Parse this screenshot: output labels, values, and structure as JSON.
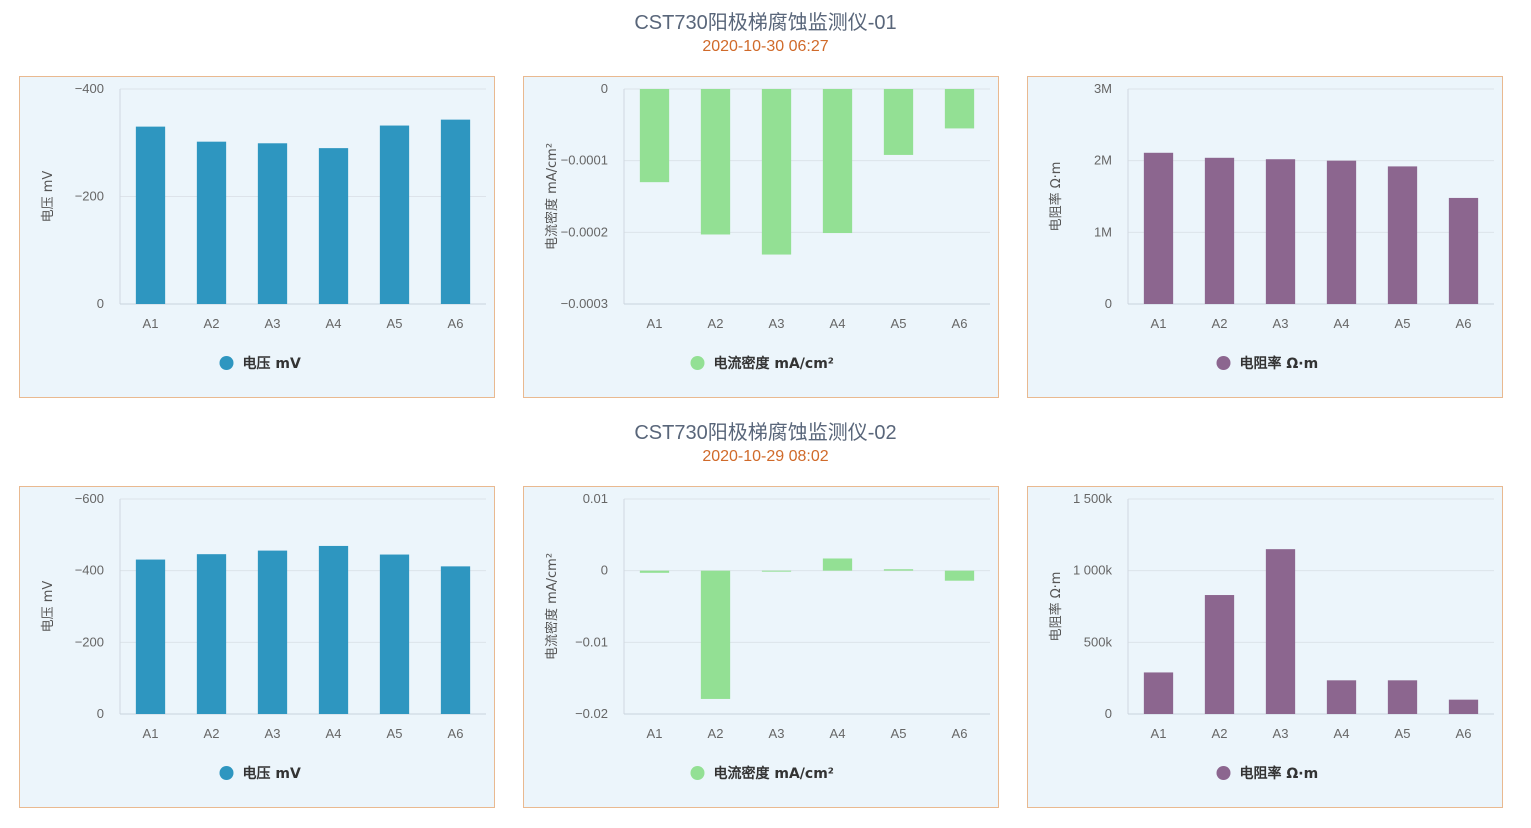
{
  "devices": [
    {
      "title": "CST730阳极梯腐蚀监测仪-01",
      "timestamp": "2020-10-30 06:27"
    },
    {
      "title": "CST730阳极梯腐蚀监测仪-02",
      "timestamp": "2020-10-29 08:02"
    }
  ],
  "chart_data": [
    {
      "type": "bar",
      "device": "CST730阳极梯腐蚀监测仪-01",
      "categories": [
        "A1",
        "A2",
        "A3",
        "A4",
        "A5",
        "A6"
      ],
      "series": [
        {
          "name": "电压 mV",
          "values": [
            -330,
            -302,
            -299,
            -290,
            -332,
            -343
          ]
        }
      ],
      "ylabel": "电压 mV",
      "ylim": [
        0,
        -400
      ],
      "yticks": [
        0,
        -200,
        -400
      ],
      "ytick_labels": [
        "0",
        "−200",
        "−400"
      ],
      "reversed": true,
      "color": "#2e96c0",
      "grid": true,
      "legend": "bottom-center"
    },
    {
      "type": "bar",
      "device": "CST730阳极梯腐蚀监测仪-01",
      "categories": [
        "A1",
        "A2",
        "A3",
        "A4",
        "A5",
        "A6"
      ],
      "series": [
        {
          "name": "电流密度 mA/cm²",
          "values": [
            -0.00013,
            -0.000203,
            -0.000231,
            -0.000201,
            -9.2e-05,
            -5.5e-05
          ]
        }
      ],
      "ylabel": "电流密度 mA/cm²",
      "ylim": [
        -0.0003,
        0
      ],
      "yticks": [
        0,
        -0.0001,
        -0.0002,
        -0.0003
      ],
      "ytick_labels": [
        "0",
        "−0.0001",
        "−0.0002",
        "−0.0003"
      ],
      "color": "#93e094",
      "grid": true,
      "legend": "bottom-center"
    },
    {
      "type": "bar",
      "device": "CST730阳极梯腐蚀监测仪-01",
      "categories": [
        "A1",
        "A2",
        "A3",
        "A4",
        "A5",
        "A6"
      ],
      "series": [
        {
          "name": "电阻率 Ω·m",
          "values": [
            2110000,
            2040000,
            2020000,
            2000000,
            1920000,
            1480000
          ]
        }
      ],
      "ylabel": "电阻率 Ω·m",
      "ylim": [
        0,
        3000000
      ],
      "yticks": [
        0,
        1000000,
        2000000,
        3000000
      ],
      "ytick_labels": [
        "0",
        "1M",
        "2M",
        "3M"
      ],
      "color": "#8c668f",
      "grid": true,
      "legend": "bottom-center"
    },
    {
      "type": "bar",
      "device": "CST730阳极梯腐蚀监测仪-02",
      "categories": [
        "A1",
        "A2",
        "A3",
        "A4",
        "A5",
        "A6"
      ],
      "series": [
        {
          "name": "电压 mV",
          "values": [
            -431,
            -446,
            -456,
            -469,
            -445,
            -412
          ]
        }
      ],
      "ylabel": "电压 mV",
      "ylim": [
        0,
        -600
      ],
      "yticks": [
        0,
        -200,
        -400,
        -600
      ],
      "ytick_labels": [
        "0",
        "−200",
        "−400",
        "−600"
      ],
      "reversed": true,
      "color": "#2e96c0",
      "grid": true,
      "legend": "bottom-center"
    },
    {
      "type": "bar",
      "device": "CST730阳极梯腐蚀监测仪-02",
      "categories": [
        "A1",
        "A2",
        "A3",
        "A4",
        "A5",
        "A6"
      ],
      "series": [
        {
          "name": "电流密度 mA/cm²",
          "values": [
            -0.0003,
            -0.0179,
            0,
            0.0017,
            0.0002,
            -0.0014
          ]
        }
      ],
      "ylabel": "电流密度 mA/cm²",
      "ylim": [
        -0.02,
        0.01
      ],
      "yticks": [
        0.01,
        0,
        -0.01,
        -0.02
      ],
      "ytick_labels": [
        "0.01",
        "0",
        "−0.01",
        "−0.02"
      ],
      "color": "#93e094",
      "grid": true,
      "legend": "bottom-center"
    },
    {
      "type": "bar",
      "device": "CST730阳极梯腐蚀监测仪-02",
      "categories": [
        "A1",
        "A2",
        "A3",
        "A4",
        "A5",
        "A6"
      ],
      "series": [
        {
          "name": "电阻率 Ω·m",
          "values": [
            290000,
            830000,
            1150000,
            235000,
            235000,
            100000
          ]
        }
      ],
      "ylabel": "电阻率 Ω·m",
      "ylim": [
        0,
        1500000
      ],
      "yticks": [
        0,
        500000,
        1000000,
        1500000
      ],
      "ytick_labels": [
        "0",
        "500k",
        "1 000k",
        "1 500k"
      ],
      "color": "#8c668f",
      "grid": true,
      "legend": "bottom-center"
    }
  ]
}
